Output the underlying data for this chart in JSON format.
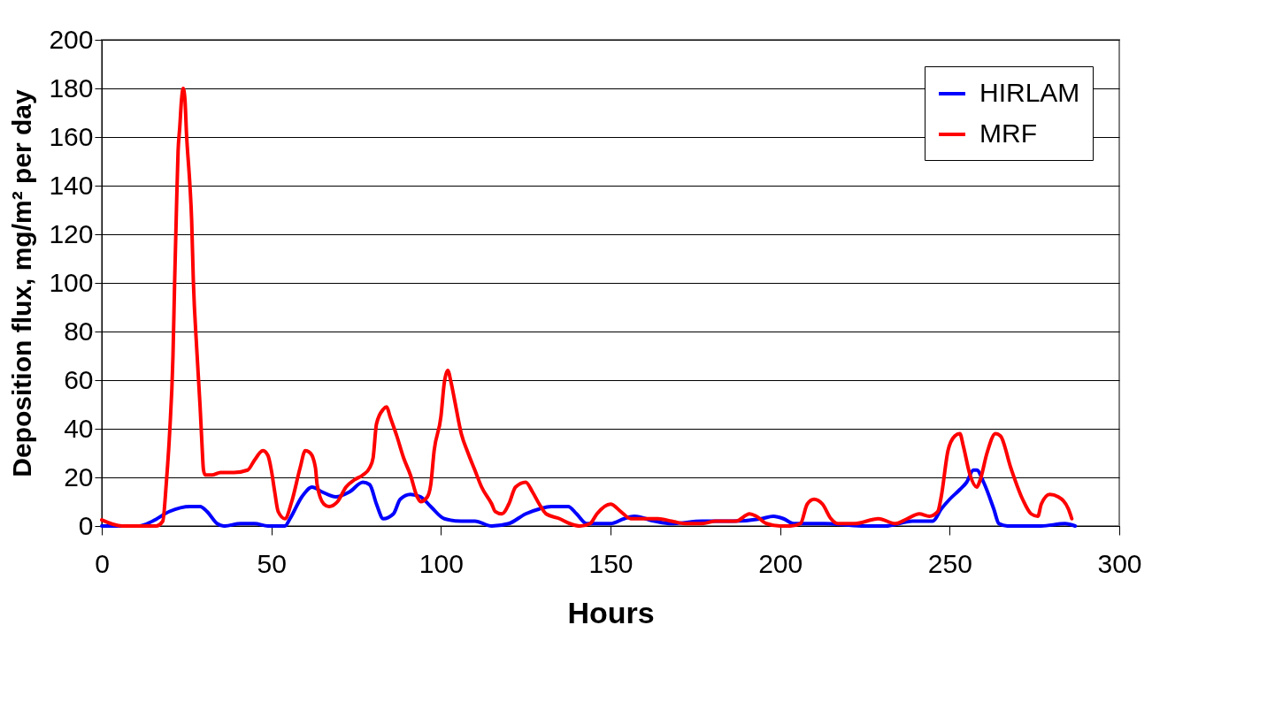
{
  "chart_data": {
    "type": "line",
    "xlabel": "Hours",
    "ylabel": "Deposition flux, mg/m² per day",
    "xlim": [
      0,
      300
    ],
    "xticks": [
      0,
      50,
      100,
      150,
      200,
      250,
      300
    ],
    "ylim": [
      0,
      200
    ],
    "yticks": [
      0,
      20,
      40,
      60,
      80,
      100,
      120,
      140,
      160,
      180,
      200
    ],
    "grid": "y",
    "legend": "top right",
    "marker": "none",
    "line_style": "solid",
    "series": [
      {
        "name": "HIRLAM",
        "color": "#0000ff",
        "x": [
          0,
          11,
          15,
          20,
          26,
          29,
          31,
          34,
          36,
          41,
          45,
          49,
          54,
          55.5,
          59,
          62,
          65,
          69,
          73,
          77,
          79,
          81,
          83,
          86,
          88,
          91,
          94,
          97,
          101,
          106,
          110,
          115,
          120,
          125,
          129,
          132.5,
          137.5,
          140,
          143,
          150,
          154,
          157,
          163,
          168,
          177,
          186,
          194.5,
          198,
          201,
          204,
          213,
          224,
          231,
          239,
          242.5,
          245,
          247.5,
          250,
          253,
          255,
          257,
          258,
          260,
          263,
          264.5,
          267,
          277,
          284,
          287
        ],
        "values": [
          0,
          0,
          2,
          6,
          8,
          8,
          6,
          1,
          0,
          1,
          1,
          0,
          0,
          3,
          12,
          16,
          14,
          12,
          14,
          18,
          17,
          9,
          3,
          5,
          11,
          13,
          12,
          8,
          3,
          2,
          2,
          0,
          1,
          5,
          7,
          8,
          8,
          5,
          1,
          1,
          3,
          4,
          2,
          1,
          2,
          2,
          3,
          4,
          3,
          1,
          1,
          0,
          0,
          2,
          2,
          2,
          7,
          11,
          15,
          18,
          23,
          23,
          18,
          7,
          1,
          0,
          0,
          1,
          0
        ]
      },
      {
        "name": "MRF",
        "color": "#ff0000",
        "x": [
          0,
          6,
          16,
          18,
          19,
          20,
          21,
          21.5,
          22,
          22.5,
          23,
          23.5,
          24,
          24.5,
          25,
          26,
          26.5,
          27,
          28,
          29,
          29.5,
          30,
          30.5,
          32.5,
          35,
          39,
          43,
          45,
          47.5,
          49,
          50,
          51,
          52,
          54,
          56,
          58.5,
          60,
          61.5,
          63,
          63.5,
          65.5,
          67,
          69.5,
          72,
          74.5,
          77,
          79,
          80,
          81,
          83,
          84,
          85,
          87,
          89,
          91,
          93,
          94,
          96,
          97,
          98,
          100,
          101,
          102,
          103,
          104,
          106,
          108,
          110,
          112,
          115,
          116,
          118,
          120,
          122,
          125,
          127,
          129,
          131,
          135,
          138,
          141,
          144,
          146,
          150,
          153,
          156,
          160,
          164,
          168,
          172,
          177,
          181,
          187,
          191,
          193,
          196,
          200,
          203,
          206,
          208,
          210,
          212.5,
          215,
          217,
          222,
          229,
          234,
          237.5,
          241,
          244,
          246.5,
          247.5,
          249.5,
          251.5,
          253,
          254,
          256,
          258,
          259,
          261,
          263.5,
          265,
          268,
          271.5,
          274,
          276,
          277,
          279.5,
          282,
          285,
          286
        ],
        "values": [
          2.5,
          0,
          0,
          2,
          17,
          38,
          70,
          101,
          129,
          154,
          164,
          175,
          180,
          176,
          161,
          140,
          126,
          101,
          73,
          49,
          35,
          23,
          21,
          21,
          22,
          22,
          23,
          27,
          31,
          29,
          23,
          14,
          6,
          3,
          10,
          24,
          31,
          30,
          24,
          17,
          9,
          8,
          10,
          16,
          19,
          21,
          24,
          28,
          42,
          48,
          49,
          45,
          37,
          28,
          21,
          12,
          10,
          12,
          17,
          31,
          45,
          59,
          64,
          59,
          52,
          38,
          30,
          23,
          16,
          9,
          6,
          5,
          9,
          16,
          18,
          14,
          9,
          5,
          3,
          1,
          0,
          1,
          5,
          9,
          6,
          3,
          3,
          3,
          2,
          1,
          1,
          2,
          2,
          5,
          4,
          1,
          0,
          0,
          1,
          9,
          11,
          9,
          3,
          1,
          1,
          3,
          1,
          3,
          5,
          4,
          6,
          12,
          31,
          37,
          38,
          33,
          21,
          16,
          19,
          30,
          38,
          37,
          24,
          11,
          5,
          4,
          9,
          13,
          12,
          7,
          3
        ]
      }
    ]
  }
}
